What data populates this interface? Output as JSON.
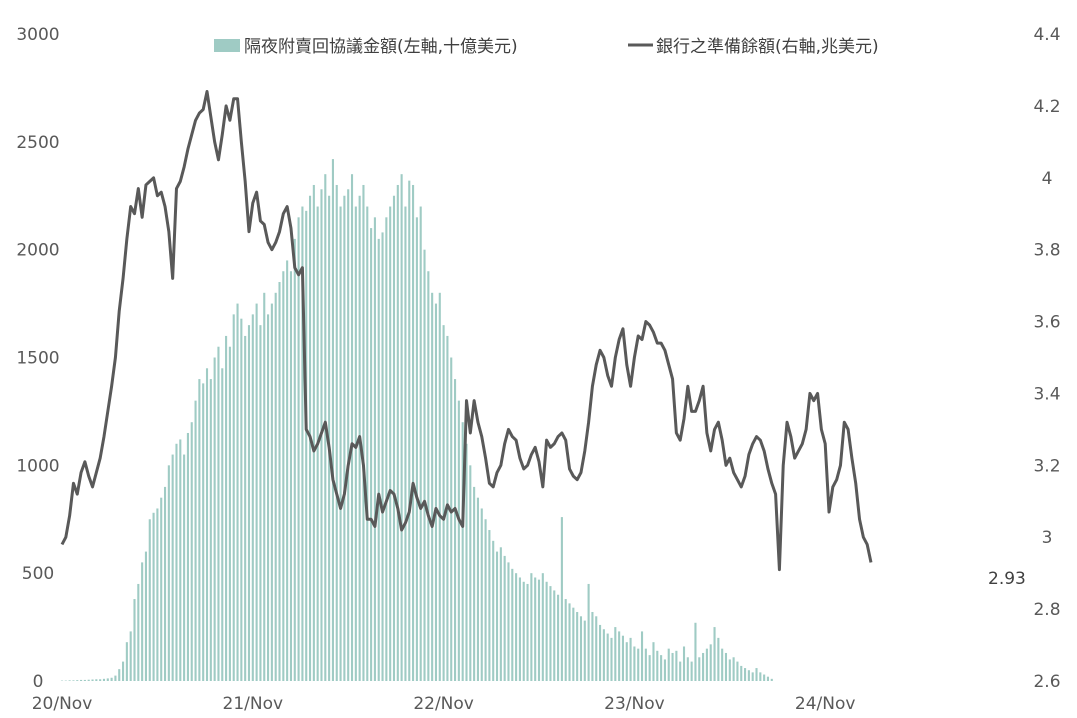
{
  "chart_data": {
    "type": "bar+line",
    "title": "",
    "x_ticks": [
      "20/Nov",
      "21/Nov",
      "22/Nov",
      "23/Nov",
      "24/Nov"
    ],
    "y_left": {
      "ticks": [
        "0",
        "500",
        "1000",
        "1500",
        "2000",
        "2500",
        "3000"
      ],
      "range": [
        0,
        3000
      ]
    },
    "y_right": {
      "ticks": [
        "2.6",
        "2.8",
        "3",
        "3.2",
        "3.4",
        "3.6",
        "3.8",
        "4",
        "4.2",
        "4.4"
      ],
      "range": [
        2.6,
        4.4
      ]
    },
    "legend": {
      "placement": "top-center",
      "bar_label": "隔夜附賣回協議金額(左軸,十億美元)",
      "line_label": "銀行之準備餘額(右軸,兆美元)"
    },
    "annotation": "2.93",
    "colors": {
      "bar": "#9fcbc4",
      "line": "#595959",
      "text": "#595959"
    },
    "series": [
      {
        "name": "隔夜附賣回協議金額(左軸,十億美元)",
        "axis": "left",
        "kind": "bar",
        "x_start": 2020.0,
        "x_step": 0.02,
        "values": [
          2,
          2,
          3,
          3,
          4,
          5,
          5,
          6,
          7,
          8,
          8,
          10,
          12,
          15,
          25,
          55,
          90,
          180,
          230,
          380,
          450,
          550,
          600,
          750,
          780,
          800,
          850,
          900,
          1000,
          1050,
          1100,
          1120,
          1050,
          1150,
          1200,
          1300,
          1400,
          1380,
          1450,
          1400,
          1500,
          1550,
          1450,
          1600,
          1550,
          1700,
          1750,
          1680,
          1600,
          1650,
          1700,
          1750,
          1650,
          1800,
          1700,
          1750,
          1800,
          1850,
          1900,
          1950,
          1900,
          2050,
          2150,
          2200,
          2180,
          2250,
          2300,
          2200,
          2280,
          2350,
          2250,
          2420,
          2300,
          2200,
          2250,
          2280,
          2350,
          2200,
          2250,
          2300,
          2200,
          2100,
          2150,
          2050,
          2080,
          2150,
          2200,
          2250,
          2300,
          2350,
          2200,
          2320,
          2300,
          2150,
          2200,
          2000,
          1900,
          1800,
          1750,
          1800,
          1650,
          1600,
          1500,
          1400,
          1300,
          1200,
          1100,
          1000,
          900,
          850,
          800,
          750,
          700,
          650,
          600,
          620,
          580,
          550,
          520,
          500,
          480,
          460,
          450,
          500,
          480,
          470,
          500,
          460,
          440,
          420,
          400,
          760,
          380,
          360,
          340,
          320,
          300,
          280,
          450,
          320,
          300,
          260,
          240,
          220,
          200,
          250,
          230,
          210,
          180,
          200,
          160,
          150,
          230,
          150,
          120,
          180,
          140,
          120,
          100,
          150,
          130,
          140,
          90,
          160,
          110,
          90,
          270,
          110,
          130,
          150,
          170,
          250,
          200,
          150,
          130,
          100,
          110,
          90,
          70,
          60,
          50,
          40,
          60,
          40,
          30,
          20,
          10
        ]
      },
      {
        "name": "銀行之準備餘額(右軸,兆美元)",
        "axis": "right",
        "kind": "line",
        "x_start": 2020.0,
        "x_step": 0.02,
        "values": [
          2.98,
          3.0,
          3.06,
          3.15,
          3.12,
          3.18,
          3.21,
          3.17,
          3.14,
          3.18,
          3.22,
          3.28,
          3.35,
          3.42,
          3.5,
          3.63,
          3.72,
          3.83,
          3.92,
          3.9,
          3.97,
          3.89,
          3.98,
          3.99,
          4.0,
          3.95,
          3.96,
          3.92,
          3.85,
          3.72,
          3.97,
          3.99,
          4.03,
          4.08,
          4.12,
          4.16,
          4.18,
          4.19,
          4.24,
          4.17,
          4.1,
          4.05,
          4.12,
          4.2,
          4.16,
          4.22,
          4.22,
          4.1,
          3.99,
          3.85,
          3.93,
          3.96,
          3.88,
          3.87,
          3.82,
          3.8,
          3.82,
          3.85,
          3.9,
          3.92,
          3.86,
          3.75,
          3.73,
          3.75,
          3.3,
          3.28,
          3.24,
          3.26,
          3.29,
          3.32,
          3.25,
          3.16,
          3.12,
          3.08,
          3.12,
          3.2,
          3.26,
          3.25,
          3.28,
          3.2,
          3.05,
          3.05,
          3.03,
          3.12,
          3.07,
          3.1,
          3.13,
          3.12,
          3.08,
          3.02,
          3.04,
          3.07,
          3.15,
          3.11,
          3.08,
          3.1,
          3.06,
          3.03,
          3.08,
          3.06,
          3.05,
          3.09,
          3.07,
          3.08,
          3.05,
          3.03,
          3.38,
          3.29,
          3.38,
          3.32,
          3.28,
          3.22,
          3.15,
          3.14,
          3.18,
          3.2,
          3.26,
          3.3,
          3.28,
          3.27,
          3.22,
          3.19,
          3.2,
          3.23,
          3.25,
          3.21,
          3.14,
          3.27,
          3.25,
          3.26,
          3.28,
          3.29,
          3.27,
          3.19,
          3.17,
          3.16,
          3.18,
          3.24,
          3.32,
          3.42,
          3.48,
          3.52,
          3.5,
          3.45,
          3.42,
          3.5,
          3.55,
          3.58,
          3.48,
          3.42,
          3.5,
          3.56,
          3.55,
          3.6,
          3.59,
          3.57,
          3.54,
          3.54,
          3.52,
          3.48,
          3.44,
          3.29,
          3.27,
          3.33,
          3.42,
          3.35,
          3.35,
          3.38,
          3.42,
          3.29,
          3.24,
          3.3,
          3.32,
          3.27,
          3.2,
          3.22,
          3.18,
          3.16,
          3.14,
          3.17,
          3.23,
          3.26,
          3.28,
          3.27,
          3.24,
          3.19,
          3.15,
          3.12,
          2.91,
          3.2,
          3.32,
          3.28,
          3.22,
          3.24,
          3.26,
          3.3,
          3.4,
          3.38,
          3.4,
          3.3,
          3.26,
          3.07,
          3.14,
          3.16,
          3.2,
          3.32,
          3.3,
          3.22,
          3.15,
          3.05,
          3.0,
          2.98,
          2.93
        ]
      }
    ]
  }
}
